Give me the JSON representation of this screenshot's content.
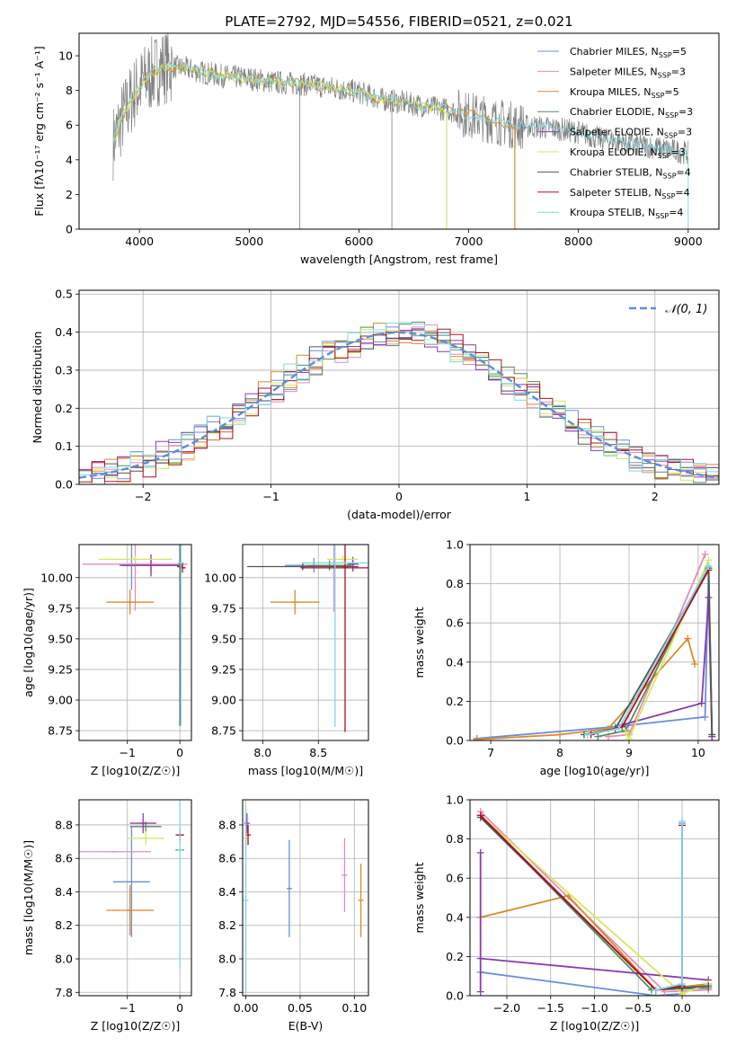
{
  "figure_title": "PLATE=2792, MJD=54556, FIBERID=0521, z=0.021",
  "colors": {
    "chabrier_miles": "#6a8fdc",
    "salpeter_miles": "#e589c1",
    "kroupa_miles": "#d98a2a",
    "chabrier_elodie": "#5a8a5a",
    "salpeter_elodie": "#8a3ab0",
    "kroupa_elodie": "#d8e65a",
    "chabrier_stelib": "#555555",
    "salpeter_stelib": "#b01020",
    "kroupa_stelib": "#7fd8e6",
    "data": "#808080",
    "normal": "#5b8fd6",
    "grid": "#b0b0b0"
  },
  "chart_data": [
    {
      "id": "spectrum",
      "type": "line",
      "xlabel": "wavelength [Angstrom, rest frame]",
      "ylabel": "Flux [fλ10⁻¹⁷ erg cm⁻² s⁻¹ A⁻¹]",
      "xlim": [
        3450,
        9280
      ],
      "ylim": [
        0,
        11.3
      ],
      "xticks": [
        "4000",
        "5000",
        "6000",
        "7000",
        "8000",
        "9000"
      ],
      "yticks": [
        "0",
        "2",
        "4",
        "6",
        "8",
        "10"
      ],
      "grid": false,
      "legend_position": "top-right",
      "legend": [
        {
          "label": "Chabrier MILES, N",
          "sub": "SSP",
          "suffix": "=5",
          "color_key": "chabrier_miles"
        },
        {
          "label": "Salpeter MILES, N",
          "sub": "SSP",
          "suffix": "=3",
          "color_key": "salpeter_miles"
        },
        {
          "label": "Kroupa MILES, N",
          "sub": "SSP",
          "suffix": "=5",
          "color_key": "kroupa_miles"
        },
        {
          "label": "Chabrier ELODIE, N",
          "sub": "SSP",
          "suffix": "=3",
          "color_key": "chabrier_elodie"
        },
        {
          "label": "Salpeter ELODIE, N",
          "sub": "SSP",
          "suffix": "=3",
          "color_key": "salpeter_elodie"
        },
        {
          "label": "Kroupa ELODIE, N",
          "sub": "SSP",
          "suffix": "=3",
          "color_key": "kroupa_elodie"
        },
        {
          "label": "Chabrier STELIB, N",
          "sub": "SSP",
          "suffix": "=4",
          "color_key": "chabrier_stelib"
        },
        {
          "label": "Salpeter STELIB, N",
          "sub": "SSP",
          "suffix": "=4",
          "color_key": "salpeter_stelib"
        },
        {
          "label": "Kroupa STELIB, N",
          "sub": "SSP",
          "suffix": "=4",
          "color_key": "kroupa_stelib"
        }
      ],
      "continuum": {
        "x": [
          3760,
          3850,
          3950,
          4050,
          4200,
          4400,
          4600,
          4800,
          5000,
          5200,
          5400,
          5600,
          5800,
          6000,
          6200,
          6400,
          6600,
          6800,
          7000,
          7200,
          7400,
          7600,
          7800,
          8000,
          8200,
          8400,
          8600,
          8800,
          9000
        ],
        "y": [
          5.0,
          6.5,
          7.8,
          8.6,
          9.4,
          9.3,
          9.0,
          8.8,
          8.7,
          8.5,
          8.4,
          8.3,
          8.1,
          7.9,
          7.5,
          7.3,
          7.1,
          6.9,
          6.6,
          6.3,
          6.0,
          5.9,
          5.8,
          5.6,
          5.2,
          5.0,
          4.8,
          4.6,
          4.4
        ]
      },
      "models": [
        {
          "color_key": "kroupa_miles",
          "x_end": 7420
        },
        {
          "color_key": "kroupa_elodie",
          "x_end": 6800
        },
        {
          "color_key": "kroupa_stelib",
          "x_end": 9000
        }
      ]
    },
    {
      "id": "residuals",
      "type": "bar",
      "xlabel": "(data-model)/error",
      "ylabel": "Normed distribution",
      "xlim": [
        -2.5,
        2.5
      ],
      "ylim": [
        0,
        0.51
      ],
      "xticks": [
        "−2",
        "−1",
        "0",
        "1",
        "2"
      ],
      "yticks": [
        "0.0",
        "0.1",
        "0.2",
        "0.3",
        "0.4",
        "0.5"
      ],
      "grid": true,
      "legend_position": "top-right",
      "legend": [
        {
          "label": "𝒩(0, 1)",
          "color_key": "normal"
        }
      ],
      "bin_width": 0.1,
      "series": [
        {
          "color_key": "chabrier_miles",
          "offset": 0.0,
          "amp": 0.4
        },
        {
          "color_key": "salpeter_miles",
          "offset": 0.03,
          "amp": 0.395
        },
        {
          "color_key": "kroupa_miles",
          "offset": -0.02,
          "amp": 0.405
        },
        {
          "color_key": "chabrier_elodie",
          "offset": 0.04,
          "amp": 0.398
        },
        {
          "color_key": "salpeter_elodie",
          "offset": -0.04,
          "amp": 0.402
        },
        {
          "color_key": "kroupa_elodie",
          "offset": 0.02,
          "amp": 0.396
        },
        {
          "color_key": "chabrier_stelib",
          "offset": -0.01,
          "amp": 0.401
        },
        {
          "color_key": "salpeter_stelib",
          "offset": 0.05,
          "amp": 0.399
        },
        {
          "color_key": "kroupa_stelib",
          "offset": -0.03,
          "amp": 0.397
        }
      ]
    },
    {
      "id": "age_vs_Z",
      "type": "scatter",
      "xlabel": "Z [log10(Z/Z☉)]",
      "ylabel": "age  [log10(age/yr)]",
      "xlim": [
        -1.92,
        0.22
      ],
      "ylim": [
        8.67,
        10.27
      ],
      "xticks": [
        "−1",
        "0"
      ],
      "yticks": [
        "8.75",
        "9.00",
        "9.25",
        "9.50",
        "9.75",
        "10.00"
      ],
      "grid": true,
      "points": [
        {
          "color_key": "chabrier_miles",
          "x": -0.92,
          "y": 10.1,
          "xerr": 0.22,
          "yerr": 0.2
        },
        {
          "color_key": "salpeter_miles",
          "x": -0.85,
          "y": 10.11,
          "xerr": 1.0,
          "yerr": 0.38
        },
        {
          "color_key": "kroupa_miles",
          "x": -0.95,
          "y": 9.8,
          "xerr": 0.45,
          "yerr": 0.1
        },
        {
          "color_key": "chabrier_elodie",
          "x": -0.55,
          "y": 10.1,
          "xerr": 0.6,
          "yerr": 0.06
        },
        {
          "color_key": "salpeter_elodie",
          "x": -0.55,
          "y": 10.1,
          "xerr": 0.55,
          "yerr": 0.09
        },
        {
          "color_key": "kroupa_elodie",
          "x": -0.85,
          "y": 10.15,
          "xerr": 0.7,
          "yerr": 0.03
        },
        {
          "color_key": "chabrier_stelib",
          "x": 0.0,
          "y": 10.09,
          "xerr": 0.05,
          "yerr": 1.3
        },
        {
          "color_key": "salpeter_stelib",
          "x": 0.05,
          "y": 10.08,
          "xerr": 0.06,
          "yerr": 0.04
        },
        {
          "color_key": "kroupa_stelib",
          "x": 0.02,
          "y": 10.12,
          "xerr": 0.06,
          "yerr": 1.33
        }
      ]
    },
    {
      "id": "age_vs_mass",
      "type": "scatter",
      "xlabel": "mass [log10(M/M☉)]",
      "xlim": [
        7.82,
        8.95
      ],
      "ylim": [
        8.67,
        10.27
      ],
      "xticks": [
        "8.0",
        "8.5"
      ],
      "yticks": [
        "8.75",
        "9.00",
        "9.25",
        "9.50",
        "9.75",
        "10.00"
      ],
      "grid": true,
      "points": [
        {
          "color_key": "chabrier_miles",
          "x": 8.46,
          "y": 10.1,
          "xerr": 0.26,
          "yerr": 0.06
        },
        {
          "color_key": "salpeter_miles",
          "x": 8.64,
          "y": 10.1,
          "xerr": 0.06,
          "yerr": 0.38
        },
        {
          "color_key": "kroupa_miles",
          "x": 8.29,
          "y": 9.8,
          "xerr": 0.22,
          "yerr": 0.1
        },
        {
          "color_key": "chabrier_elodie",
          "x": 8.6,
          "y": 10.1,
          "xerr": 0.2,
          "yerr": 0.04
        },
        {
          "color_key": "salpeter_elodie",
          "x": 8.81,
          "y": 10.11,
          "xerr": 0.05,
          "yerr": 0.06
        },
        {
          "color_key": "kroupa_elodie",
          "x": 8.72,
          "y": 10.15,
          "xerr": 0.14,
          "yerr": 0.03
        },
        {
          "color_key": "chabrier_stelib",
          "x": 8.36,
          "y": 10.09,
          "xerr": 0.5,
          "yerr": 0.03
        },
        {
          "color_key": "salpeter_stelib",
          "x": 8.74,
          "y": 10.08,
          "xerr": 0.4,
          "yerr": 1.34
        },
        {
          "color_key": "kroupa_stelib",
          "x": 8.65,
          "y": 10.12,
          "xerr": 0.3,
          "yerr": 1.34
        }
      ]
    },
    {
      "id": "weight_vs_age",
      "type": "line",
      "xlabel": "age  [log10(age/yr)]",
      "ylabel": "mass weight",
      "xlim": [
        6.7,
        10.3
      ],
      "ylim": [
        0,
        1.0
      ],
      "xticks": [
        "7",
        "8",
        "9",
        "10"
      ],
      "yticks": [
        "0.0",
        "0.2",
        "0.4",
        "0.6",
        "0.8",
        "1.0"
      ],
      "grid": true,
      "series": [
        {
          "color_key": "chabrier_miles",
          "x": [
            6.8,
            8.8,
            10.1,
            10.15
          ],
          "y": [
            0.01,
            0.07,
            0.12,
            0.88
          ]
        },
        {
          "color_key": "salpeter_miles",
          "x": [
            8.7,
            9.0,
            10.1
          ],
          "y": [
            0.02,
            0.03,
            0.95
          ]
        },
        {
          "color_key": "kroupa_miles",
          "x": [
            6.8,
            8.0,
            8.7,
            9.85,
            9.95
          ],
          "y": [
            0.005,
            0.03,
            0.06,
            0.52,
            0.39
          ]
        },
        {
          "color_key": "chabrier_elodie",
          "x": [
            8.55,
            8.95,
            10.15,
            10.2
          ],
          "y": [
            0.02,
            0.05,
            0.89,
            0.02
          ]
        },
        {
          "color_key": "salpeter_elodie",
          "x": [
            8.9,
            10.05,
            10.15,
            10.2
          ],
          "y": [
            0.08,
            0.19,
            0.73,
            0.02
          ]
        },
        {
          "color_key": "kroupa_elodie",
          "x": [
            8.95,
            9.0,
            10.15
          ],
          "y": [
            0.04,
            0.01,
            0.92
          ]
        },
        {
          "color_key": "chabrier_stelib",
          "x": [
            8.35,
            8.8,
            10.15,
            10.2
          ],
          "y": [
            0.03,
            0.06,
            0.88,
            0.03
          ]
        },
        {
          "color_key": "salpeter_stelib",
          "x": [
            8.45,
            8.9,
            10.15
          ],
          "y": [
            0.03,
            0.07,
            0.87
          ]
        },
        {
          "color_key": "kroupa_stelib",
          "x": [
            8.4,
            8.85,
            10.15
          ],
          "y": [
            0.03,
            0.06,
            0.89
          ]
        }
      ]
    },
    {
      "id": "mass_vs_Z",
      "type": "scatter",
      "xlabel": "Z [log10(Z/Z☉)]",
      "ylabel": "mass [log10(M/M☉)]",
      "xlim": [
        -1.92,
        0.22
      ],
      "ylim": [
        7.78,
        8.95
      ],
      "xticks": [
        "−1",
        "0"
      ],
      "yticks": [
        "7.8",
        "8.0",
        "8.2",
        "8.4",
        "8.6",
        "8.8"
      ],
      "grid": true,
      "points": [
        {
          "color_key": "chabrier_miles",
          "x": -0.92,
          "y": 8.46,
          "xerr": 0.35,
          "yerr": 0.33
        },
        {
          "color_key": "salpeter_miles",
          "x": -1.25,
          "y": 8.64,
          "xerr": 0.7,
          "yerr": 0.0
        },
        {
          "color_key": "kroupa_miles",
          "x": -0.95,
          "y": 8.29,
          "xerr": 0.45,
          "yerr": 0.15
        },
        {
          "color_key": "chabrier_elodie",
          "x": -0.65,
          "y": 8.79,
          "xerr": 0.3,
          "yerr": 0.03
        },
        {
          "color_key": "salpeter_elodie",
          "x": -0.7,
          "y": 8.81,
          "xerr": 0.25,
          "yerr": 0.06
        },
        {
          "color_key": "kroupa_elodie",
          "x": -0.65,
          "y": 8.72,
          "xerr": 0.35,
          "yerr": 0.04
        },
        {
          "color_key": "chabrier_stelib",
          "x": 0.0,
          "y": 8.65,
          "xerr": 0.08,
          "yerr": 0.0
        },
        {
          "color_key": "salpeter_stelib",
          "x": 0.0,
          "y": 8.74,
          "xerr": 0.08,
          "yerr": 0.04
        },
        {
          "color_key": "kroupa_stelib",
          "x": 0.0,
          "y": 8.65,
          "xerr": 0.06,
          "yerr": 0.71
        }
      ]
    },
    {
      "id": "mass_vs_ebv",
      "type": "scatter",
      "xlabel": "E(B-V)",
      "xlim": [
        -0.003,
        0.113
      ],
      "ylim": [
        7.78,
        8.95
      ],
      "xticks": [
        "0.00",
        "0.05",
        "0.10"
      ],
      "yticks": [
        "7.8",
        "8.0",
        "8.2",
        "8.4",
        "8.6",
        "8.8"
      ],
      "grid": true,
      "points": [
        {
          "color_key": "chabrier_miles",
          "x": 0.04,
          "y": 8.42,
          "xerr": 0,
          "yerr": 0.29
        },
        {
          "color_key": "salpeter_miles",
          "x": 0.091,
          "y": 8.5,
          "xerr": 0,
          "yerr": 0.22
        },
        {
          "color_key": "kroupa_miles",
          "x": 0.106,
          "y": 8.35,
          "xerr": 0,
          "yerr": 0.22
        },
        {
          "color_key": "salpeter_elodie",
          "x": 0.001,
          "y": 8.81,
          "xerr": 0,
          "yerr": 0.06
        },
        {
          "color_key": "kroupa_elodie",
          "x": 0.0,
          "y": 8.72,
          "xerr": 0,
          "yerr": 0.05
        },
        {
          "color_key": "salpeter_stelib",
          "x": 0.002,
          "y": 8.74,
          "xerr": 0,
          "yerr": 0.06
        },
        {
          "color_key": "kroupa_stelib",
          "x": 0.0,
          "y": 8.35,
          "xerr": 0,
          "yerr": 0.55
        }
      ]
    },
    {
      "id": "weight_vs_Z",
      "type": "line",
      "xlabel": "Z [log10(Z/Z☉)]",
      "ylabel": "mass weight",
      "xlim": [
        -2.42,
        0.42
      ],
      "ylim": [
        0,
        1.0
      ],
      "xticks": [
        "−2.0",
        "−1.5",
        "−1.0",
        "−0.5",
        "0.0"
      ],
      "yticks": [
        "0.0",
        "0.2",
        "0.4",
        "0.6",
        "0.8",
        "1.0"
      ],
      "grid": true,
      "series": [
        {
          "color_key": "chabrier_miles",
          "x": [
            -2.3,
            -0.3,
            0.0,
            0.0
          ],
          "y": [
            0.12,
            0.0,
            0.01,
            0.88
          ]
        },
        {
          "color_key": "salpeter_miles",
          "x": [
            -2.3,
            -0.2,
            0.3
          ],
          "y": [
            0.94,
            0.02,
            0.03
          ]
        },
        {
          "color_key": "kroupa_miles",
          "x": [
            -2.3,
            -1.3,
            -0.3,
            0.3
          ],
          "y": [
            0.4,
            0.51,
            0.03,
            0.06
          ]
        },
        {
          "color_key": "chabrier_elodie",
          "x": [
            -2.3,
            -0.35,
            0.3
          ],
          "y": [
            0.92,
            0.03,
            0.04
          ]
        },
        {
          "color_key": "salpeter_elodie",
          "x": [
            -2.3,
            -2.3,
            -2.3,
            0.3
          ],
          "y": [
            0.02,
            0.73,
            0.19,
            0.08
          ]
        },
        {
          "color_key": "kroupa_elodie",
          "x": [
            -2.3,
            0.0,
            0.3
          ],
          "y": [
            0.92,
            0.01,
            0.06
          ]
        },
        {
          "color_key": "chabrier_stelib",
          "x": [
            -2.3,
            -0.3,
            0.0,
            0.3
          ],
          "y": [
            0.91,
            0.03,
            0.04,
            0.05
          ]
        },
        {
          "color_key": "salpeter_stelib",
          "x": [
            -2.3,
            -0.3,
            0.0,
            0.0
          ],
          "y": [
            0.92,
            0.03,
            0.05,
            0.87
          ]
        },
        {
          "color_key": "kroupa_stelib",
          "x": [
            -0.3,
            0.0,
            0.0
          ],
          "y": [
            0.03,
            0.06,
            0.89
          ]
        }
      ]
    }
  ]
}
